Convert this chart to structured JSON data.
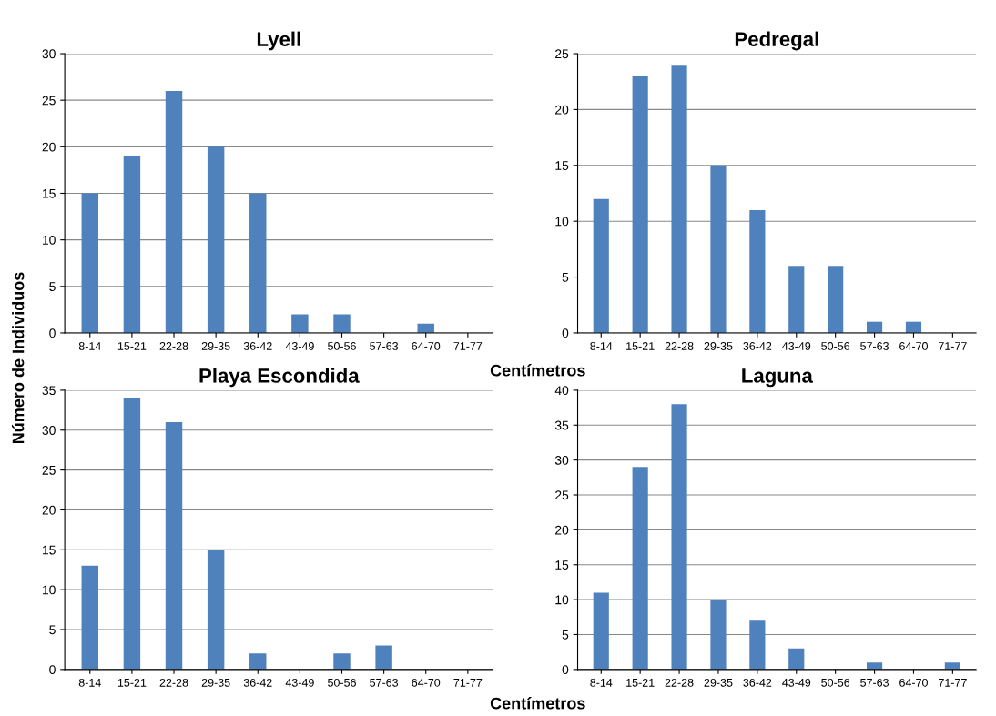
{
  "chart_data": [
    {
      "type": "bar",
      "title": "Lyell",
      "ylabel": "Número de Individuos",
      "categories": [
        "8-14",
        "15-21",
        "22-28",
        "29-35",
        "36-42",
        "43-49",
        "50-56",
        "57-63",
        "64-70",
        "71-77"
      ],
      "values": [
        15,
        19,
        26,
        20,
        15,
        2,
        2,
        0,
        1,
        0
      ],
      "color": "#4f81bd",
      "ylim": [
        0,
        30
      ],
      "yticks": [
        0,
        5,
        10,
        15,
        20,
        25,
        30
      ],
      "grid": "y",
      "legend": false
    },
    {
      "type": "bar",
      "title": "Pedregal",
      "xlabel": "Centímetros",
      "categories": [
        "8-14",
        "15-21",
        "22-28",
        "29-35",
        "36-42",
        "43-49",
        "50-56",
        "57-63",
        "64-70",
        "71-77"
      ],
      "values": [
        12,
        23,
        24,
        15,
        11,
        6,
        6,
        1,
        1,
        0
      ],
      "color": "#4f81bd",
      "ylim": [
        0,
        25
      ],
      "yticks": [
        0,
        5,
        10,
        15,
        20,
        25
      ],
      "grid": "y",
      "legend": false
    },
    {
      "type": "bar",
      "title": "Playa Escondida",
      "categories": [
        "8-14",
        "15-21",
        "22-28",
        "29-35",
        "36-42",
        "43-49",
        "50-56",
        "57-63",
        "64-70",
        "71-77"
      ],
      "values": [
        13,
        34,
        31,
        15,
        2,
        0,
        2,
        3,
        0,
        0
      ],
      "color": "#4f81bd",
      "ylim": [
        0,
        35
      ],
      "yticks": [
        0,
        5,
        10,
        15,
        20,
        25,
        30,
        35
      ],
      "grid": "y",
      "legend": false
    },
    {
      "type": "bar",
      "title": "Laguna",
      "xlabel": "Centímetros",
      "categories": [
        "8-14",
        "15-21",
        "22-28",
        "29-35",
        "36-42",
        "43-49",
        "50-56",
        "57-63",
        "64-70",
        "71-77"
      ],
      "values": [
        11,
        29,
        38,
        10,
        7,
        3,
        0,
        1,
        0,
        1
      ],
      "color": "#4f81bd",
      "ylim": [
        0,
        40
      ],
      "yticks": [
        0,
        5,
        10,
        15,
        20,
        25,
        30,
        35,
        40
      ],
      "grid": "y",
      "legend": false
    }
  ]
}
